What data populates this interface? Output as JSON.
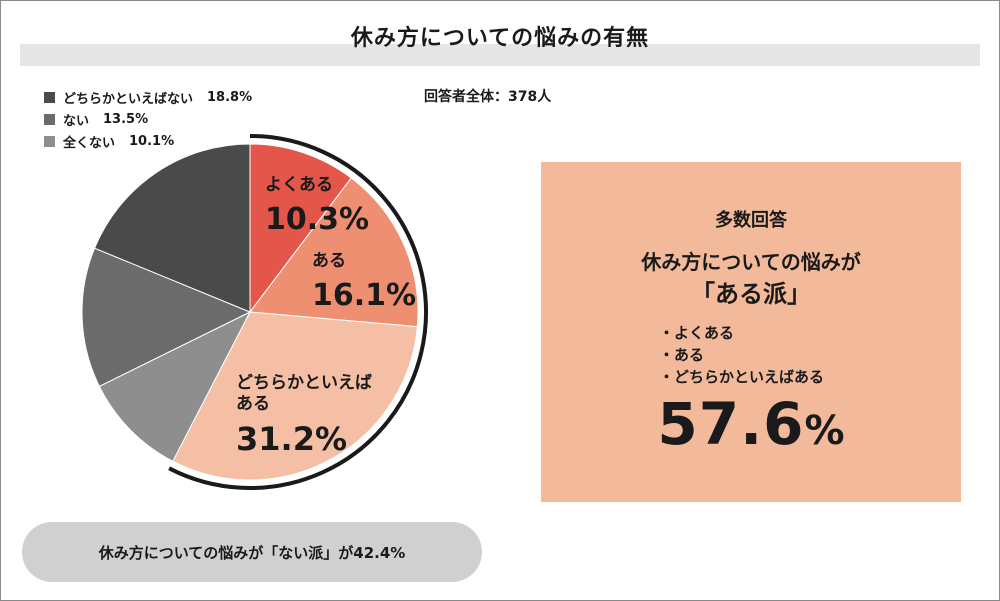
{
  "title": "休み方についての悩みの有無",
  "respondents": "回答者全体：378人",
  "chart_data": {
    "type": "pie",
    "title": "休み方についての悩みの有無",
    "slices": [
      {
        "label": "よくある",
        "value": 10.3,
        "display": "10.3%",
        "color": "#e5564a"
      },
      {
        "label": "ある",
        "value": 16.1,
        "display": "16.1%",
        "color": "#ef8f72"
      },
      {
        "label": "どちらかといえば\nある",
        "value": 31.2,
        "display": "31.2%",
        "color": "#f5bfa6"
      },
      {
        "label": "全くない",
        "value": 10.1,
        "display": "10.1%",
        "color": "#8e8e8e"
      },
      {
        "label": "ない",
        "value": 13.5,
        "display": "13.5%",
        "color": "#6b6b6b"
      },
      {
        "label": "どちらかといえばない",
        "value": 18.8,
        "display": "18.8%",
        "color": "#4a4a4a"
      }
    ],
    "legend_placement": "top-left"
  },
  "legend": [
    {
      "label": "どちらかといえばない",
      "value": "18.8%",
      "color": "#4a4a4a"
    },
    {
      "label": "ない",
      "value": "13.5%",
      "color": "#6b6b6b"
    },
    {
      "label": "全くない",
      "value": "10.1%",
      "color": "#8e8e8e"
    }
  ],
  "panel": {
    "heading": "多数回答",
    "line1": "休み方についての悩みが",
    "line2": "「ある派」",
    "items": [
      "よくある",
      "ある",
      "どちらかといえばある"
    ],
    "big_number": "57.6",
    "big_unit": "%",
    "bg_color": "#f2b99b"
  },
  "pill": {
    "text": "休み方についての悩みが「ない派」が42.4%"
  }
}
